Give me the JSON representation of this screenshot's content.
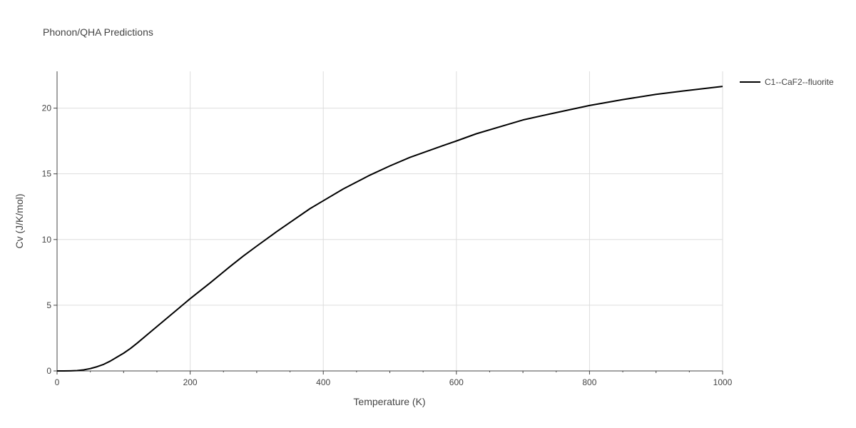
{
  "chart_data": {
    "type": "line",
    "title": "Phonon/QHA Predictions",
    "xlabel": "Temperature (K)",
    "ylabel": "Cv (J/K/mol)",
    "xlim": [
      0,
      1000
    ],
    "ylim": [
      0,
      22.8
    ],
    "xticks": [
      "0",
      "200",
      "400",
      "600",
      "800",
      "1000"
    ],
    "yticks": [
      "0",
      "5",
      "10",
      "15",
      "20"
    ],
    "grid": true,
    "legend": "right",
    "series": [
      {
        "name": "C1--CaF2--fluorite",
        "color": "#000000",
        "x": [
          0,
          10,
          20,
          30,
          40,
          50,
          60,
          70,
          80,
          90,
          100,
          110,
          120,
          140,
          160,
          180,
          200,
          230,
          260,
          280,
          300,
          330,
          350,
          380,
          400,
          430,
          470,
          500,
          530,
          580,
          600,
          630,
          680,
          700,
          740,
          800,
          850,
          900,
          940,
          1000
        ],
        "y": [
          0,
          0,
          0.01,
          0.03,
          0.08,
          0.18,
          0.32,
          0.5,
          0.75,
          1.05,
          1.35,
          1.7,
          2.1,
          2.95,
          3.8,
          4.65,
          5.5,
          6.7,
          7.95,
          8.75,
          9.5,
          10.6,
          11.3,
          12.35,
          12.95,
          13.85,
          14.9,
          15.6,
          16.25,
          17.15,
          17.5,
          18.05,
          18.8,
          19.1,
          19.55,
          20.2,
          20.65,
          21.05,
          21.3,
          21.65
        ]
      }
    ]
  }
}
